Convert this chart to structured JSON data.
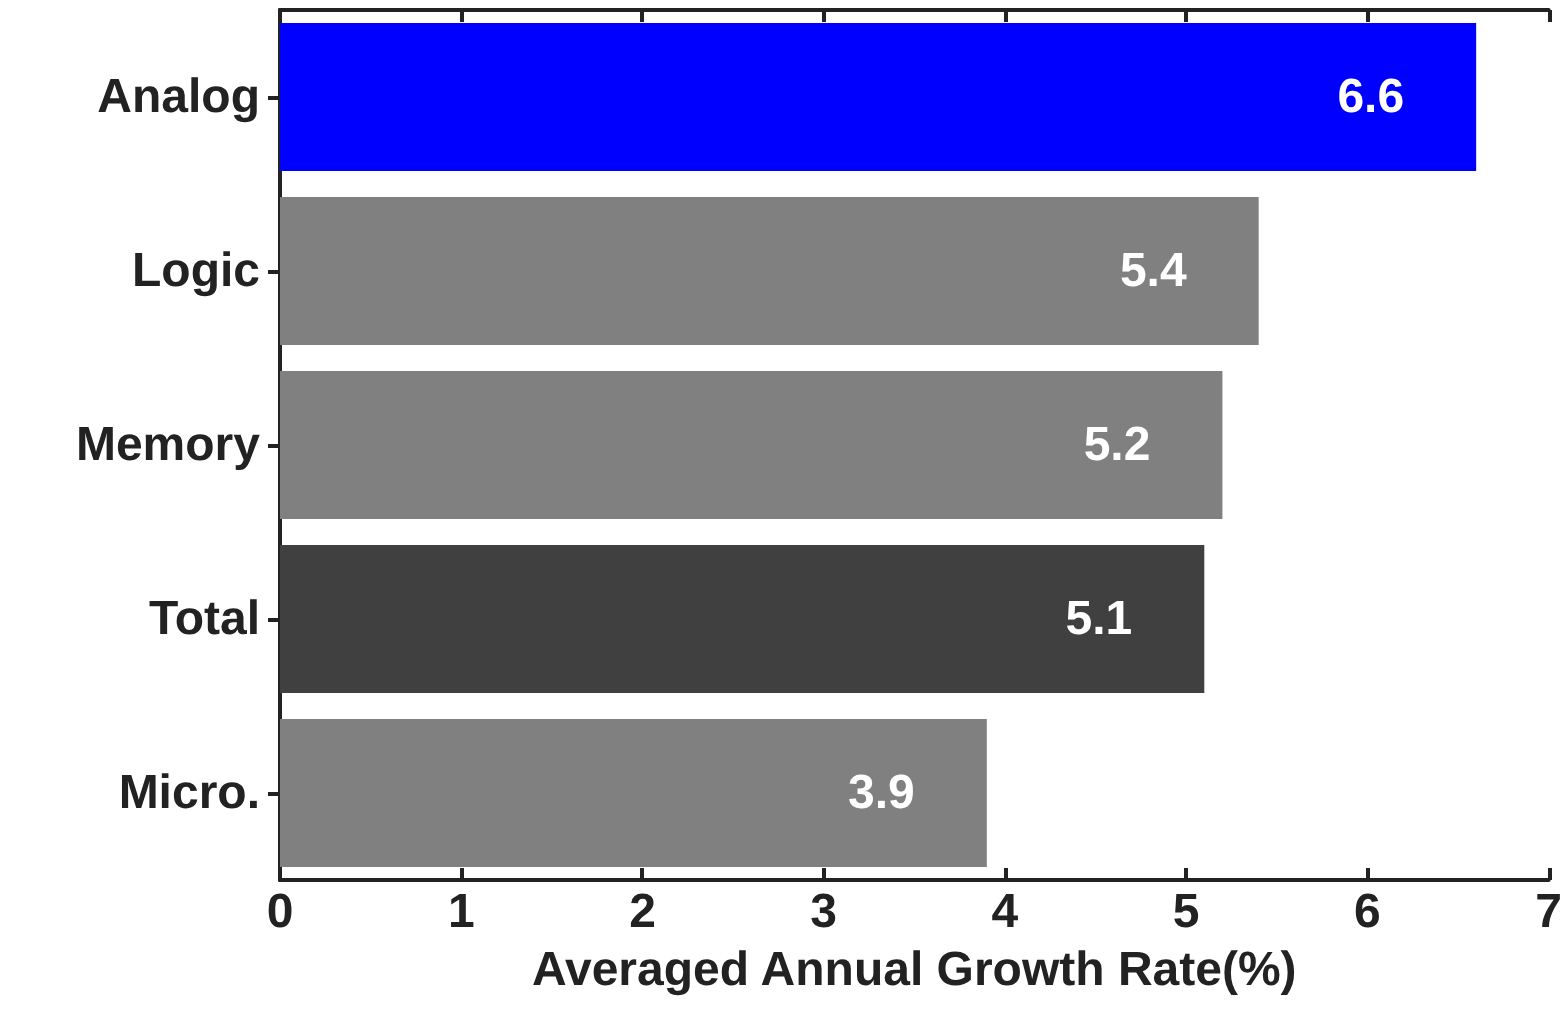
{
  "chart_data": {
    "type": "bar",
    "orientation": "horizontal",
    "xlabel": "Averaged Annual Growth Rate(%)",
    "categories": [
      "Analog",
      "Logic",
      "Memory",
      "Total",
      "Micro."
    ],
    "values": [
      6.6,
      5.4,
      5.2,
      5.1,
      3.9
    ],
    "colors": [
      "#0000ff",
      "#808080",
      "#808080",
      "#404040",
      "#808080"
    ],
    "xlim": [
      0,
      7
    ],
    "xticks": [
      0,
      1,
      2,
      3,
      4,
      5,
      6,
      7
    ],
    "grid": false,
    "data_labels": true
  }
}
